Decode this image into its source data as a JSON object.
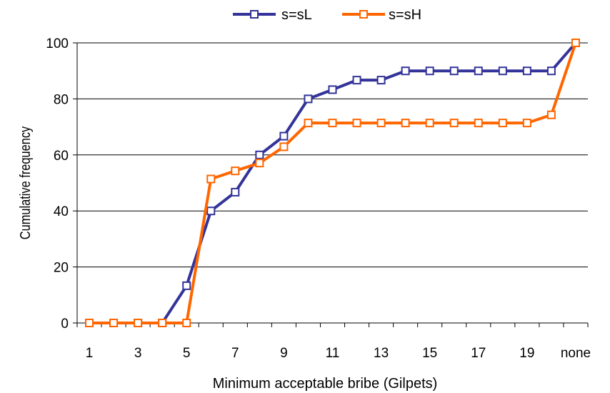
{
  "chart_data": {
    "type": "line",
    "categories": [
      "1",
      "2",
      "3",
      "4",
      "5",
      "6",
      "7",
      "8",
      "9",
      "10",
      "11",
      "12",
      "13",
      "14",
      "15",
      "16",
      "17",
      "18",
      "19",
      "20",
      "none"
    ],
    "tick_labels": [
      "1",
      "",
      "3",
      "",
      "5",
      "",
      "7",
      "",
      "9",
      "",
      "11",
      "",
      "13",
      "",
      "15",
      "",
      "17",
      "",
      "19",
      "",
      "none"
    ],
    "series": [
      {
        "name": "s=sL",
        "color": "#333399",
        "values": [
          0,
          0,
          0,
          0,
          13.3,
          40,
          46.7,
          60,
          66.7,
          80,
          83.3,
          86.7,
          86.7,
          90,
          90,
          90,
          90,
          90,
          90,
          90,
          100
        ]
      },
      {
        "name": "s=sH",
        "color": "#ff6600",
        "values": [
          0,
          0,
          0,
          0,
          0,
          51.4,
          54.3,
          57.1,
          62.9,
          71.4,
          71.4,
          71.4,
          71.4,
          71.4,
          71.4,
          71.4,
          71.4,
          71.4,
          71.4,
          74.3,
          100
        ]
      }
    ],
    "xlabel": "Minimum acceptable bribe (Gilpets)",
    "ylabel": "Cumulative frequency",
    "ylim": [
      0,
      100
    ],
    "yticks": [
      0,
      20,
      40,
      60,
      80,
      100
    ],
    "grid": true,
    "legend": "top-center"
  }
}
